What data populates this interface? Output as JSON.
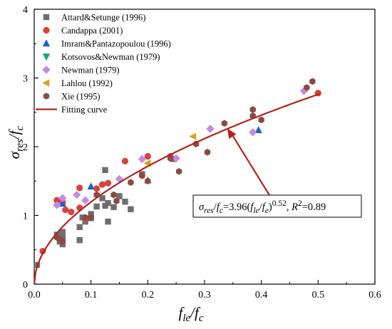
{
  "chart_data": {
    "type": "scatter",
    "xlabel": "f_le/f_c",
    "ylabel": "σ_res/f_c",
    "xlim": [
      0,
      0.6
    ],
    "ylim": [
      0,
      4
    ],
    "xticks": [
      "0.0",
      "0.1",
      "0.2",
      "0.3",
      "0.4",
      "0.5",
      "0.6"
    ],
    "yticks": [
      "0",
      "1",
      "2",
      "3",
      "4"
    ],
    "legend_position": "top-left",
    "series": [
      {
        "name": "Attard&Setunge (1996)",
        "color": "#6e6e6e",
        "marker": "square",
        "points": [
          [
            0.005,
            0.28
          ],
          [
            0.04,
            0.72
          ],
          [
            0.045,
            0.62
          ],
          [
            0.05,
            0.58
          ],
          [
            0.05,
            0.68
          ],
          [
            0.05,
            0.76
          ],
          [
            0.08,
            0.64
          ],
          [
            0.08,
            0.83
          ],
          [
            0.085,
            0.97
          ],
          [
            0.09,
            0.91
          ],
          [
            0.1,
            0.96
          ],
          [
            0.1,
            1.02
          ],
          [
            0.11,
            1.13
          ],
          [
            0.12,
            1.25
          ],
          [
            0.125,
            1.14
          ],
          [
            0.13,
            0.91
          ],
          [
            0.13,
            1.18
          ],
          [
            0.14,
            1.12
          ],
          [
            0.15,
            1.28
          ],
          [
            0.16,
            1.2
          ],
          [
            0.17,
            1.09
          ],
          [
            0.19,
            1.6
          ],
          [
            0.125,
            1.66
          ],
          [
            0.245,
            1.82
          ]
        ]
      },
      {
        "name": "Candappa (2001)",
        "color": "#d9423c",
        "marker": "circle",
        "points": [
          [
            0.015,
            0.48
          ],
          [
            0.04,
            1.22
          ],
          [
            0.05,
            1.19
          ],
          [
            0.055,
            1.08
          ],
          [
            0.065,
            1.05
          ],
          [
            0.08,
            1.11
          ],
          [
            0.08,
            1.4
          ],
          [
            0.09,
            0.95
          ],
          [
            0.11,
            1.39
          ],
          [
            0.12,
            1.45
          ],
          [
            0.13,
            1.47
          ],
          [
            0.16,
            1.79
          ],
          [
            0.19,
            1.58
          ],
          [
            0.2,
            1.86
          ],
          [
            0.24,
            1.86
          ],
          [
            0.5,
            2.78
          ]
        ]
      },
      {
        "name": "Imram&Pantazopoulou (1996)",
        "color": "#1f5fc8",
        "marker": "triangle-up",
        "points": [
          [
            0.05,
            1.17
          ],
          [
            0.1,
            1.42
          ],
          [
            0.2,
            1.51
          ],
          [
            0.395,
            2.24
          ]
        ]
      },
      {
        "name": "Kotsovos&Newman (1979)",
        "color": "#14a37b",
        "marker": "triangle-down",
        "points": []
      },
      {
        "name": "Newman (1979)",
        "color": "#c48ae8",
        "marker": "diamond",
        "points": [
          [
            0.04,
            1.15
          ],
          [
            0.05,
            1.25
          ],
          [
            0.075,
            1.3
          ],
          [
            0.09,
            1.22
          ],
          [
            0.15,
            1.53
          ],
          [
            0.19,
            1.82
          ],
          [
            0.25,
            1.83
          ],
          [
            0.31,
            2.26
          ],
          [
            0.385,
            2.21
          ],
          [
            0.475,
            2.81
          ]
        ]
      },
      {
        "name": "Lahlou (1992)",
        "color": "#d4a51a",
        "marker": "triangle-left",
        "points": [
          [
            0.2,
            1.76
          ],
          [
            0.28,
            2.15
          ]
        ]
      },
      {
        "name": "Xie (1995)",
        "color": "#8a4a42",
        "marker": "hexagon",
        "points": [
          [
            0.04,
            0.68
          ],
          [
            0.045,
            0.65
          ],
          [
            0.05,
            0.62
          ],
          [
            0.09,
            0.97
          ],
          [
            0.1,
            0.97
          ],
          [
            0.11,
            1.3
          ],
          [
            0.14,
            1.3
          ],
          [
            0.145,
            1.21
          ],
          [
            0.17,
            1.48
          ],
          [
            0.19,
            1.58
          ],
          [
            0.2,
            1.5
          ],
          [
            0.24,
            1.83
          ],
          [
            0.255,
            1.64
          ],
          [
            0.285,
            2.04
          ],
          [
            0.305,
            1.92
          ],
          [
            0.335,
            2.34
          ],
          [
            0.385,
            2.45
          ],
          [
            0.385,
            2.54
          ],
          [
            0.4,
            2.39
          ],
          [
            0.48,
            2.86
          ],
          [
            0.49,
            2.95
          ]
        ]
      },
      {
        "name": "Fitting curve",
        "color": "#b5231a",
        "marker": "line",
        "equation": {
          "coefficient": 3.96,
          "exponent": 0.52
        }
      }
    ],
    "annotation": {
      "text_parts": [
        "σ",
        "res",
        "/",
        "f",
        "c",
        "=3.96(",
        "f",
        "le",
        "/",
        "f",
        "e",
        ")",
        "0.52",
        ", ",
        "R",
        "2",
        "=0.89"
      ],
      "arrow_target": [
        0.34,
        2.27
      ]
    }
  }
}
